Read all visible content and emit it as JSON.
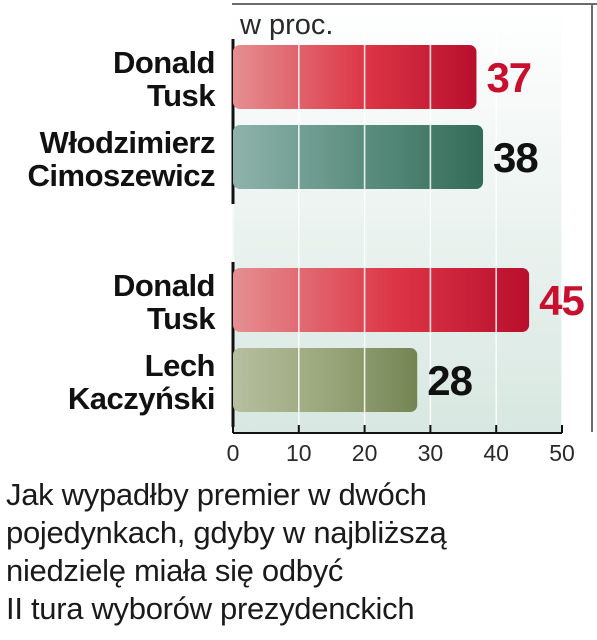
{
  "chart_data": {
    "type": "bar",
    "orientation": "horizontal",
    "unit_label": "w proc.",
    "xlim": [
      0,
      50
    ],
    "x_ticks": [
      0,
      10,
      20,
      30,
      40,
      50
    ],
    "grid": true,
    "groups": [
      {
        "bars": [
          {
            "label_lines": [
              "Donald",
              "Tusk"
            ],
            "value": 37,
            "color": "#d42a3c",
            "value_color": "#c8102e"
          },
          {
            "label_lines": [
              "Włodzimierz",
              "Cimoszewicz"
            ],
            "value": 38,
            "color": "#3f7a68",
            "value_color": "#111111"
          }
        ]
      },
      {
        "bars": [
          {
            "label_lines": [
              "Donald",
              "Tusk"
            ],
            "value": 45,
            "color": "#d42a3c",
            "value_color": "#c8102e"
          },
          {
            "label_lines": [
              "Lech",
              "Kaczyński"
            ],
            "value": 28,
            "color": "#849766",
            "value_color": "#111111"
          }
        ]
      }
    ]
  },
  "caption_lines": [
    "Jak wypadłby premier w dwóch",
    "pojedynkach, gdyby w najbliższą",
    "niedzielę miała się odbyć",
    "II tura wyborów prezydenckich"
  ]
}
